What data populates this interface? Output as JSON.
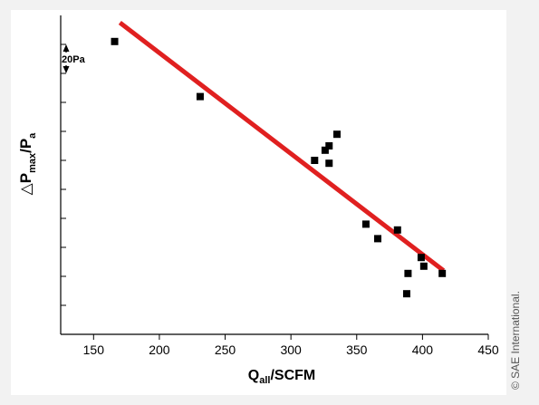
{
  "credit": "© SAE International.",
  "chart_data": {
    "type": "scatter",
    "title": "",
    "xlabel": {
      "main": "Q",
      "sub": "all",
      "rest": "/SCFM"
    },
    "ylabel": {
      "delta": "△",
      "main": "P",
      "sub": "max",
      "mid": "/P",
      "sub2": "a"
    },
    "xlim": [
      125,
      450
    ],
    "xticks": [
      150,
      200,
      250,
      300,
      350,
      400,
      450
    ],
    "ylim": [
      0,
      220
    ],
    "yticks": [
      20,
      40,
      60,
      80,
      100,
      120,
      140,
      160,
      180,
      200
    ],
    "scale_annotation": {
      "label": "20Pa",
      "y_from": 180,
      "y_to": 200
    },
    "grid": false,
    "series": [
      {
        "marker": "square",
        "color": "#000000",
        "points": [
          [
            166,
            202
          ],
          [
            231,
            164
          ],
          [
            318,
            120
          ],
          [
            326,
            127
          ],
          [
            329,
            130
          ],
          [
            335,
            138
          ],
          [
            329,
            118
          ],
          [
            357,
            76
          ],
          [
            366,
            66
          ],
          [
            381,
            72
          ],
          [
            389,
            42
          ],
          [
            388,
            28
          ],
          [
            399,
            53
          ],
          [
            401,
            47
          ],
          [
            415,
            42
          ]
        ]
      }
    ],
    "fit_line": {
      "color": "#e02020",
      "x": [
        170,
        416
      ],
      "y": [
        215,
        44
      ]
    }
  }
}
